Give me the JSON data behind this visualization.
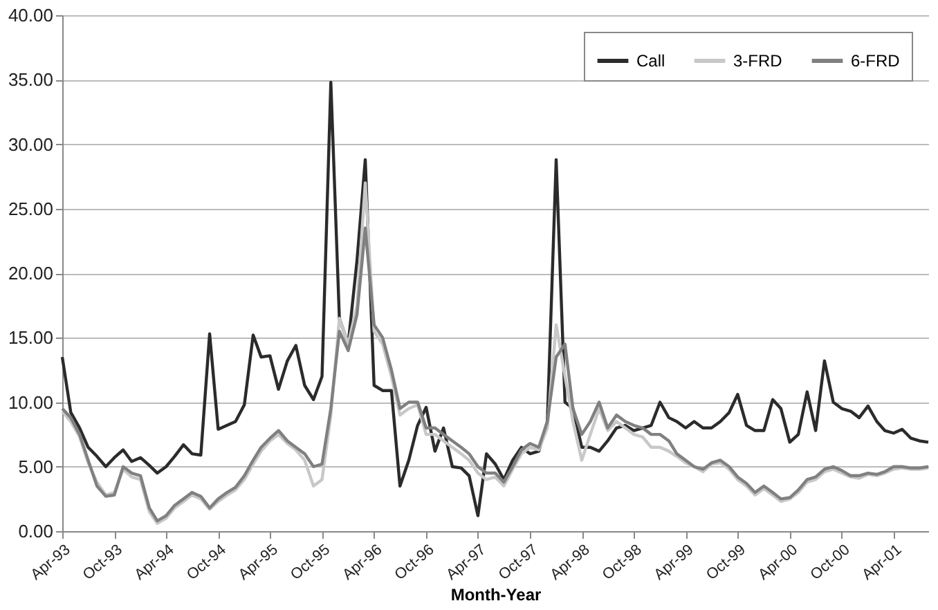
{
  "chart_data": {
    "type": "line",
    "xlabel": "Month-Year",
    "x": [
      "1993-04",
      "1993-05",
      "1993-06",
      "1993-07",
      "1993-08",
      "1993-09",
      "1993-10",
      "1993-11",
      "1993-12",
      "1994-01",
      "1994-02",
      "1994-03",
      "1994-04",
      "1994-05",
      "1994-06",
      "1994-07",
      "1994-08",
      "1994-09",
      "1994-10",
      "1994-11",
      "1994-12",
      "1995-01",
      "1995-02",
      "1995-03",
      "1995-04",
      "1995-05",
      "1995-06",
      "1995-07",
      "1995-08",
      "1995-09",
      "1995-10",
      "1995-11",
      "1995-12",
      "1996-01",
      "1996-02",
      "1996-03",
      "1996-04",
      "1996-05",
      "1996-06",
      "1996-07",
      "1996-08",
      "1996-09",
      "1996-10",
      "1996-11",
      "1996-12",
      "1997-01",
      "1997-02",
      "1997-03",
      "1997-04",
      "1997-05",
      "1997-06",
      "1997-07",
      "1997-08",
      "1997-09",
      "1997-10",
      "1997-11",
      "1997-12",
      "1998-01",
      "1998-02",
      "1998-03",
      "1998-04",
      "1998-05",
      "1998-06",
      "1998-07",
      "1998-08",
      "1998-09",
      "1998-10",
      "1998-11",
      "1998-12",
      "1999-01",
      "1999-02",
      "1999-03",
      "1999-04",
      "1999-05",
      "1999-06",
      "1999-07",
      "1999-08",
      "1999-09",
      "1999-10",
      "1999-11",
      "1999-12",
      "2000-01",
      "2000-02",
      "2000-03",
      "2000-04",
      "2000-05",
      "2000-06",
      "2000-07",
      "2000-08",
      "2000-09",
      "2000-10",
      "2000-11",
      "2000-12",
      "2001-01",
      "2001-02",
      "2001-03",
      "2001-04",
      "2001-05",
      "2001-06",
      "2001-07",
      "2001-08"
    ],
    "series": [
      {
        "name": "Call",
        "color": "#2b2b2b",
        "values": [
          13.5,
          9.2,
          8.0,
          6.5,
          5.8,
          5.0,
          5.7,
          6.3,
          5.4,
          5.7,
          5.1,
          4.5,
          5.0,
          5.8,
          6.7,
          6.0,
          5.9,
          15.3,
          7.9,
          8.2,
          8.5,
          9.8,
          15.2,
          13.5,
          13.6,
          11.0,
          13.2,
          14.4,
          11.3,
          10.2,
          12.0,
          34.8,
          16.5,
          14.5,
          21.0,
          28.8,
          11.3,
          10.9,
          10.9,
          3.5,
          5.5,
          8.2,
          9.6,
          6.2,
          8.0,
          5.0,
          4.9,
          4.3,
          1.2,
          6.0,
          5.2,
          4.0,
          5.5,
          6.5,
          6.0,
          6.2,
          8.5,
          28.8,
          10.0,
          9.5,
          6.5,
          6.5,
          6.2,
          7.0,
          8.0,
          8.2,
          7.8,
          8.0,
          8.2,
          10.0,
          8.8,
          8.5,
          8.0,
          8.5,
          8.0,
          8.0,
          8.5,
          9.2,
          10.6,
          8.2,
          7.8,
          7.8,
          10.2,
          9.5,
          6.9,
          7.5,
          10.8,
          7.8,
          13.2,
          10.0,
          9.5,
          9.3,
          8.8,
          9.7,
          8.5,
          7.8,
          7.6,
          7.9,
          7.2,
          7.0,
          6.9
        ]
      },
      {
        "name": "3-FRD",
        "color": "#c8c8c8",
        "values": [
          9.3,
          8.5,
          7.3,
          5.3,
          3.8,
          2.8,
          3.0,
          4.8,
          4.2,
          4.0,
          1.5,
          0.6,
          1.0,
          1.8,
          2.3,
          2.8,
          2.5,
          1.7,
          2.3,
          2.8,
          3.2,
          4.0,
          5.2,
          6.2,
          7.0,
          7.5,
          6.8,
          6.3,
          5.5,
          3.5,
          4.0,
          9.0,
          16.5,
          14.5,
          17.5,
          27.0,
          15.5,
          14.5,
          12.0,
          9.0,
          9.5,
          9.8,
          7.5,
          7.5,
          7.0,
          6.5,
          6.0,
          5.5,
          4.5,
          4.0,
          4.2,
          3.5,
          4.8,
          6.0,
          6.5,
          6.3,
          8.0,
          16.0,
          12.0,
          8.5,
          5.5,
          7.5,
          9.5,
          7.8,
          8.5,
          8.0,
          7.5,
          7.3,
          6.5,
          6.5,
          6.2,
          5.8,
          5.3,
          5.0,
          4.6,
          5.2,
          5.3,
          4.8,
          4.0,
          3.5,
          2.8,
          3.3,
          2.8,
          2.3,
          2.5,
          3.0,
          3.8,
          4.0,
          4.6,
          4.8,
          4.5,
          4.2,
          4.1,
          4.4,
          4.3,
          4.5,
          4.8,
          4.9,
          4.8,
          4.8,
          4.9
        ]
      },
      {
        "name": "6-FRD",
        "color": "#808080",
        "values": [
          9.5,
          8.8,
          7.5,
          5.5,
          3.5,
          2.7,
          2.8,
          5.0,
          4.5,
          4.3,
          1.8,
          0.8,
          1.2,
          2.0,
          2.5,
          3.0,
          2.7,
          1.8,
          2.5,
          3.0,
          3.4,
          4.3,
          5.5,
          6.5,
          7.2,
          7.8,
          7.0,
          6.5,
          6.0,
          5.0,
          5.2,
          9.5,
          15.5,
          14.0,
          16.8,
          23.5,
          16.0,
          15.0,
          12.5,
          9.5,
          10.0,
          10.0,
          8.0,
          8.0,
          7.5,
          7.0,
          6.5,
          6.0,
          5.0,
          4.5,
          4.5,
          3.8,
          5.0,
          6.3,
          6.8,
          6.5,
          8.5,
          13.5,
          14.5,
          9.5,
          7.5,
          8.5,
          10.0,
          8.0,
          9.0,
          8.5,
          8.2,
          8.0,
          7.5,
          7.5,
          7.0,
          6.0,
          5.5,
          5.0,
          4.8,
          5.3,
          5.5,
          5.0,
          4.2,
          3.7,
          3.0,
          3.5,
          3.0,
          2.5,
          2.6,
          3.2,
          4.0,
          4.2,
          4.8,
          5.0,
          4.7,
          4.3,
          4.3,
          4.5,
          4.4,
          4.6,
          5.0,
          5.0,
          4.9,
          4.9,
          5.0
        ]
      }
    ],
    "xlim": [
      "1993-04",
      "2001-08"
    ],
    "xticks": [
      {
        "value": "1993-04",
        "label": "Apr-93"
      },
      {
        "value": "1993-10",
        "label": "Oct-93"
      },
      {
        "value": "1994-04",
        "label": "Apr-94"
      },
      {
        "value": "1994-10",
        "label": "Oct-94"
      },
      {
        "value": "1995-04",
        "label": "Apr-95"
      },
      {
        "value": "1995-10",
        "label": "Oct-95"
      },
      {
        "value": "1996-04",
        "label": "Apr-96"
      },
      {
        "value": "1996-10",
        "label": "Oct-96"
      },
      {
        "value": "1997-04",
        "label": "Apr-97"
      },
      {
        "value": "1997-10",
        "label": "Oct-97"
      },
      {
        "value": "1998-04",
        "label": "Apr-98"
      },
      {
        "value": "1998-10",
        "label": "Oct-98"
      },
      {
        "value": "1999-04",
        "label": "Apr-99"
      },
      {
        "value": "1999-10",
        "label": "Oct-99"
      },
      {
        "value": "2000-04",
        "label": "Apr-00"
      },
      {
        "value": "2000-10",
        "label": "Oct-00"
      },
      {
        "value": "2001-04",
        "label": "Apr-01"
      }
    ],
    "ylim": [
      0,
      40
    ],
    "yticks": [
      {
        "value": 0,
        "label": "0.00"
      },
      {
        "value": 5,
        "label": "5.00"
      },
      {
        "value": 10,
        "label": "10.00"
      },
      {
        "value": 15,
        "label": "15.00"
      },
      {
        "value": 20,
        "label": "20.00"
      },
      {
        "value": 25,
        "label": "25.00"
      },
      {
        "value": 30,
        "label": "30.00"
      },
      {
        "value": 35,
        "label": "35.00"
      },
      {
        "value": 40,
        "label": "40.00"
      }
    ],
    "grid": "y",
    "legend": "top right",
    "line_style": "solid",
    "marker": "none"
  }
}
